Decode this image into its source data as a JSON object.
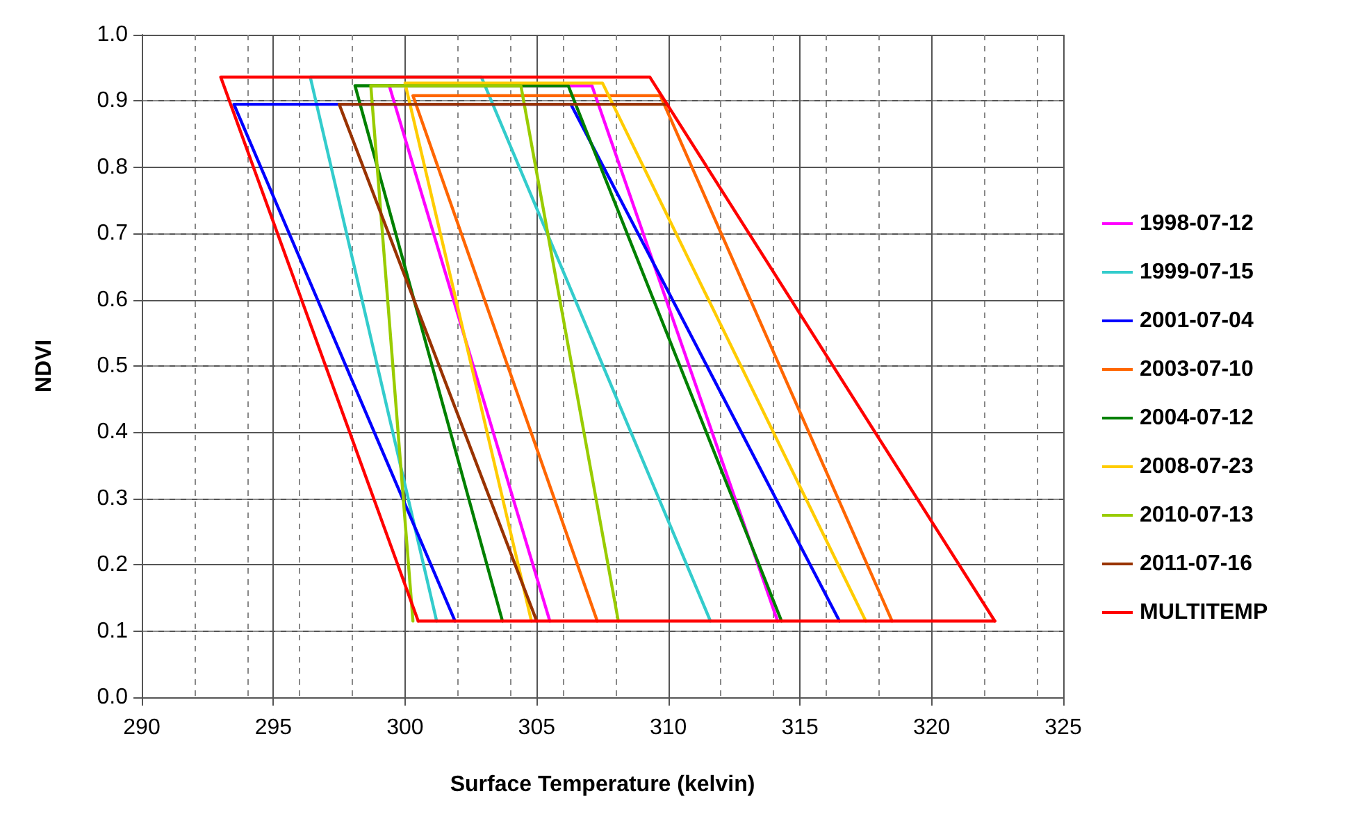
{
  "chart_data": {
    "type": "line",
    "xlabel": "Surface Temperature (kelvin)",
    "ylabel": "NDVI",
    "xlim": [
      290,
      325
    ],
    "xticks": [
      290,
      295,
      300,
      305,
      310,
      315,
      320,
      325
    ],
    "ylim": [
      0,
      1
    ],
    "yticks": [
      {
        "value": 0,
        "label": "0.0"
      },
      {
        "value": 0.1,
        "label": "0.1"
      },
      {
        "value": 0.2,
        "label": "0.2"
      },
      {
        "value": 0.3,
        "label": "0.3"
      },
      {
        "value": 0.4,
        "label": "0.4"
      },
      {
        "value": 0.5,
        "label": "0.5"
      },
      {
        "value": 0.6,
        "label": "0.6"
      },
      {
        "value": 0.7,
        "label": "0.7"
      },
      {
        "value": 0.8,
        "label": "0.8"
      },
      {
        "value": 0.9,
        "label": "0.9"
      },
      {
        "value": 1,
        "label": "1.0"
      }
    ],
    "grid": true,
    "legend": "right",
    "marker": "none",
    "line_style": "solid",
    "series": [
      {
        "name": "1998-07-12",
        "color": "#ff00ff",
        "x": [
          305.5,
          299.4,
          307.1,
          314.15
        ],
        "values": [
          0.115,
          0.923,
          0.923,
          0.115
        ]
      },
      {
        "name": "1999-07-15",
        "color": "#33cccc",
        "x": [
          301.2,
          296.4,
          302.9,
          311.6
        ],
        "values": [
          0.115,
          0.936,
          0.936,
          0.115
        ]
      },
      {
        "name": "2001-07-04",
        "color": "#0000ff",
        "x": [
          301.9,
          293.5,
          306.3,
          316.5
        ],
        "values": [
          0.115,
          0.895,
          0.895,
          0.115
        ]
      },
      {
        "name": "2003-07-10",
        "color": "#ff6600",
        "x": [
          307.3,
          300.3,
          309.7,
          318.5
        ],
        "values": [
          0.115,
          0.908,
          0.908,
          0.115
        ]
      },
      {
        "name": "2004-07-12",
        "color": "#008000",
        "x": [
          303.7,
          298.1,
          306.2,
          314.3
        ],
        "values": [
          0.115,
          0.923,
          0.923,
          0.115
        ]
      },
      {
        "name": "2008-07-23",
        "color": "#ffcc00",
        "x": [
          304.8,
          300.0,
          307.5,
          317.5
        ],
        "values": [
          0.115,
          0.927,
          0.927,
          0.115
        ]
      },
      {
        "name": "2010-07-13",
        "color": "#99cc00",
        "x": [
          300.3,
          298.7,
          304.4,
          308.1
        ],
        "values": [
          0.115,
          0.923,
          0.923,
          0.115
        ]
      },
      {
        "name": "2011-07-16",
        "color": "#993300",
        "x": [
          305.0,
          297.5,
          309.9
        ],
        "values": [
          0.115,
          0.895,
          0.895
        ]
      },
      {
        "name": "MULTITEMP",
        "color": "#ff0000",
        "x": [
          300.5,
          293.0,
          309.3,
          322.4
        ],
        "values": [
          0.115,
          0.936,
          0.936,
          0.115
        ]
      },
      {
        "color": "#ff0000",
        "x": [
          300.5,
          322.4
        ],
        "values": [
          0.115,
          0.115
        ]
      }
    ]
  }
}
